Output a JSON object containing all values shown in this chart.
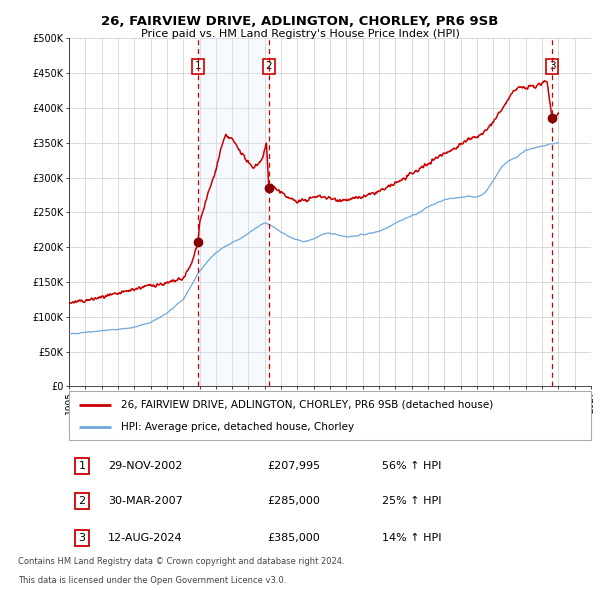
{
  "title": "26, FAIRVIEW DRIVE, ADLINGTON, CHORLEY, PR6 9SB",
  "subtitle": "Price paid vs. HM Land Registry's House Price Index (HPI)",
  "ylim": [
    0,
    500000
  ],
  "yticks": [
    0,
    50000,
    100000,
    150000,
    200000,
    250000,
    300000,
    350000,
    400000,
    450000,
    500000
  ],
  "ytick_labels": [
    "£0",
    "£50K",
    "£100K",
    "£150K",
    "£200K",
    "£250K",
    "£300K",
    "£350K",
    "£400K",
    "£450K",
    "£500K"
  ],
  "xlim_start": 1995.0,
  "xlim_end": 2027.0,
  "xtick_years": [
    1995,
    1996,
    1997,
    1998,
    1999,
    2000,
    2001,
    2002,
    2003,
    2004,
    2005,
    2006,
    2007,
    2008,
    2009,
    2010,
    2011,
    2012,
    2013,
    2014,
    2015,
    2016,
    2017,
    2018,
    2019,
    2020,
    2021,
    2022,
    2023,
    2024,
    2025,
    2026,
    2027
  ],
  "sale1_date": 2002.91,
  "sale1_price": 207995,
  "sale1_label": "1",
  "sale2_date": 2007.25,
  "sale2_price": 285000,
  "sale2_label": "2",
  "sale3_date": 2024.62,
  "sale3_price": 385000,
  "sale3_label": "3",
  "shading_start": 2002.91,
  "shading_end": 2007.25,
  "hpi_color": "#6fa8dc",
  "price_color": "#cc0000",
  "sale_dot_color": "#880000",
  "shade_color": "#ddeeff",
  "legend_price_label": "26, FAIRVIEW DRIVE, ADLINGTON, CHORLEY, PR6 9SB (detached house)",
  "legend_hpi_label": "HPI: Average price, detached house, Chorley",
  "table_rows": [
    {
      "num": "1",
      "date": "29-NOV-2002",
      "price": "£207,995",
      "change": "56% ↑ HPI"
    },
    {
      "num": "2",
      "date": "30-MAR-2007",
      "price": "£285,000",
      "change": "25% ↑ HPI"
    },
    {
      "num": "3",
      "date": "12-AUG-2024",
      "price": "£385,000",
      "change": "14% ↑ HPI"
    }
  ],
  "footnote1": "Contains HM Land Registry data © Crown copyright and database right 2024.",
  "footnote2": "This data is licensed under the Open Government Licence v3.0.",
  "background_color": "#ffffff",
  "grid_color": "#cccccc"
}
